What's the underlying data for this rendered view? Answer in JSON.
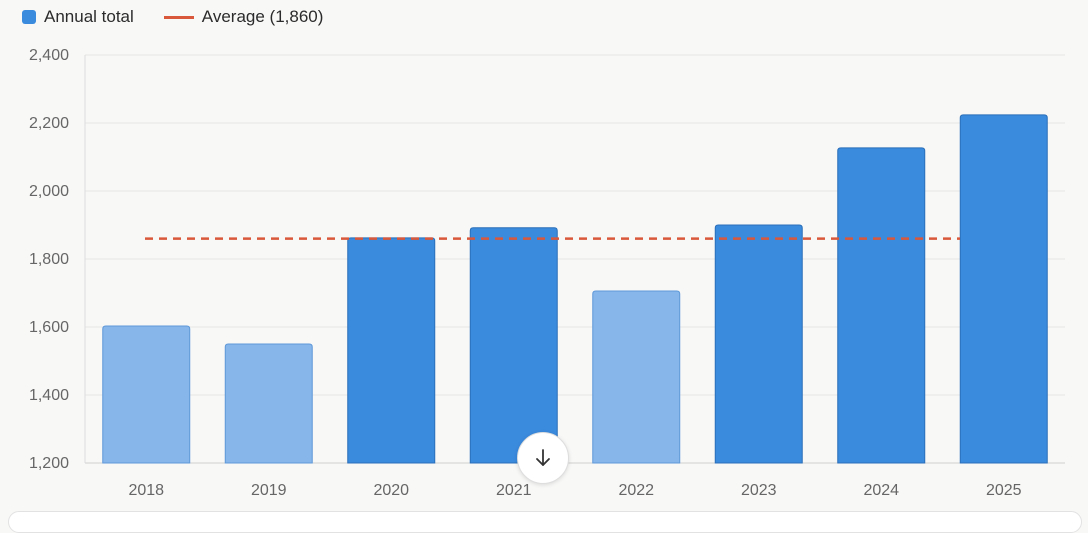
{
  "chart_data": {
    "type": "bar",
    "categories": [
      "2018",
      "2019",
      "2020",
      "2021",
      "2022",
      "2023",
      "2024",
      "2025"
    ],
    "series": [
      {
        "name": "Annual total",
        "values": [
          1603,
          1550,
          1862,
          1892,
          1706,
          1900,
          2127,
          2224
        ]
      }
    ],
    "highlight": [
      false,
      false,
      true,
      true,
      false,
      true,
      true,
      true
    ],
    "reference_line": {
      "label": "Average (1,860)",
      "value": 1860
    },
    "ylim": [
      1200,
      2400
    ],
    "yticks": [
      1200,
      1400,
      1600,
      1800,
      2000,
      2200,
      2400
    ],
    "ytick_labels": [
      "1,200",
      "1,400",
      "1,600",
      "1,800",
      "2,000",
      "2,200",
      "2,400"
    ],
    "xlabel": "",
    "ylabel": "",
    "grid": true,
    "legend_position": "top-left",
    "colors": {
      "bar_highlight": "#3a8ade",
      "bar_normal": "#86b6ea",
      "average_line": "#d9573a"
    }
  },
  "legend": {
    "series_label": "Annual total",
    "average_label": "Average (1,860)"
  },
  "controls": {
    "scroll_icon": "arrow-down-icon"
  }
}
